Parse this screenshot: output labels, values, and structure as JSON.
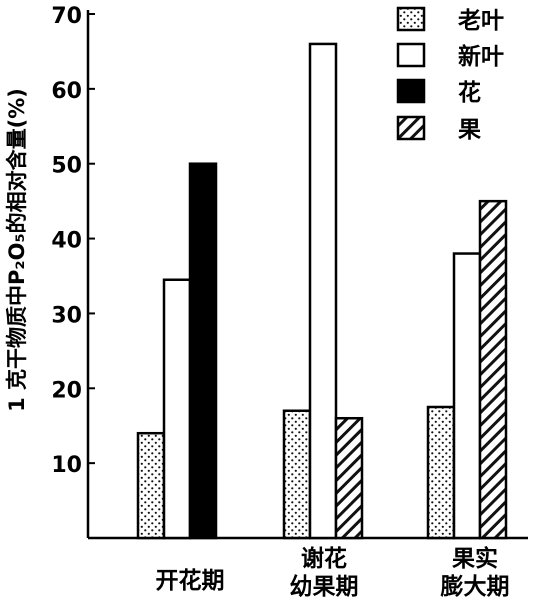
{
  "chart_data": {
    "type": "bar",
    "title": "",
    "ylabel": "1 克干物质中P₂O₅的相对含量(%)",
    "xlabel": "",
    "ylim": [
      0,
      70
    ],
    "yticks": [
      10,
      20,
      30,
      40,
      50,
      60,
      70
    ],
    "categories": [
      "开花期",
      "谢花\n幼果期",
      "果实\n膨大期"
    ],
    "series": [
      {
        "name": "老叶",
        "values": [
          14,
          17,
          17.5
        ],
        "fill": "dotted"
      },
      {
        "name": "新叶",
        "values": [
          34.5,
          66,
          38
        ],
        "fill": "white"
      },
      {
        "name": "花",
        "values": [
          50,
          null,
          null
        ],
        "fill": "black"
      },
      {
        "name": "果",
        "values": [
          null,
          16,
          45
        ],
        "fill": "hatched"
      }
    ],
    "legend_position": "top-right",
    "grid": false
  }
}
